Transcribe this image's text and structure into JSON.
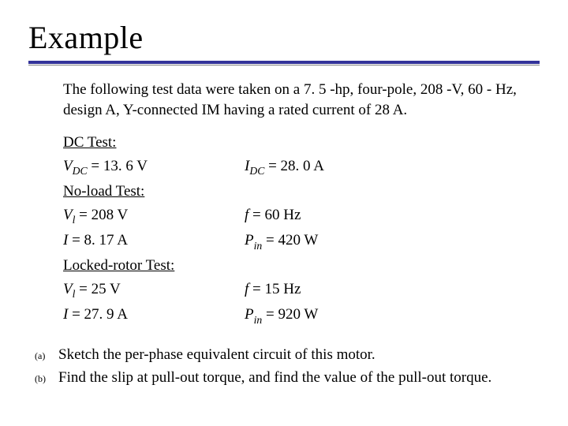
{
  "colors": {
    "accent": "#333399",
    "thin_rule": "#808080",
    "text": "#000000",
    "background": "#ffffff"
  },
  "typography": {
    "title_fontsize_pt": 30,
    "body_fontsize_pt": 14,
    "question_label_fontsize_pt": 9,
    "font_family": "Times New Roman"
  },
  "title": "Example",
  "intro": "The following test data were taken on a 7. 5 -hp, four-pole, 208 -V, 60 - Hz, design A, Y-connected IM having a rated current of 28 A.",
  "tests": {
    "dc": {
      "heading": "DC Test:",
      "rows": [
        {
          "left_var": "V",
          "left_sub": "DC",
          "left_rest": " = 13. 6 V",
          "right_var": "I",
          "right_sub": "DC",
          "right_rest": " = 28. 0 A"
        }
      ]
    },
    "noload": {
      "heading": "No-load Test:",
      "rows": [
        {
          "left_var": "V",
          "left_sub": "l",
          "left_rest": " = 208 V",
          "right_var": "f",
          "right_sub": "",
          "right_rest": " = 60 Hz"
        },
        {
          "left_var": "I",
          "left_sub": "",
          "left_rest": " = 8. 17 A",
          "right_var": "P",
          "right_sub": "in",
          "right_rest": " = 420 W"
        }
      ]
    },
    "locked": {
      "heading": "Locked-rotor Test:",
      "rows": [
        {
          "left_var": "V",
          "left_sub": "l",
          "left_rest": " = 25 V",
          "right_var": "f",
          "right_sub": "",
          "right_rest": " = 15 Hz"
        },
        {
          "left_var": "I",
          "left_sub": "",
          "left_rest": " = 27. 9 A",
          "right_var": "P",
          "right_sub": "in",
          "right_rest": " = 920 W"
        }
      ]
    }
  },
  "questions": [
    {
      "label": "(a)",
      "text": "Sketch the per-phase equivalent circuit of this motor."
    },
    {
      "label": "(b)",
      "text": "Find the slip at pull-out torque, and find the value of the pull-out torque."
    }
  ]
}
